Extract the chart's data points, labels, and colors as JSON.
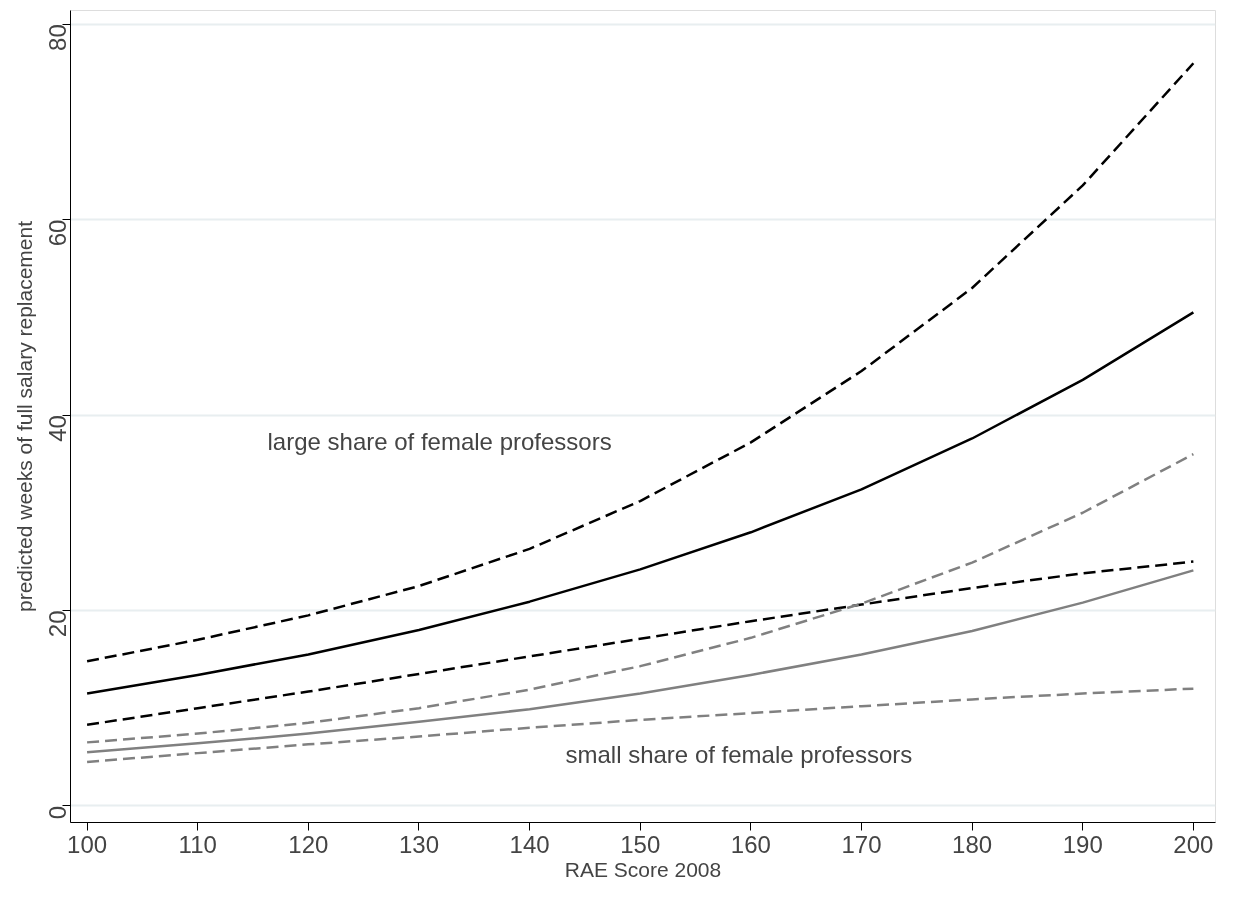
{
  "chart_data": {
    "type": "line",
    "xlabel": "RAE Score 2008",
    "ylabel": "predicted weeks of full salary replacement",
    "x": [
      100,
      110,
      120,
      130,
      140,
      150,
      160,
      170,
      180,
      190,
      200
    ],
    "xlim": [
      98.5,
      202
    ],
    "ylim": [
      -1.7,
      81.4
    ],
    "xticks": [
      100,
      110,
      120,
      130,
      140,
      150,
      160,
      170,
      180,
      190,
      200
    ],
    "yticks": [
      0,
      20,
      40,
      60,
      80
    ],
    "grid": "y",
    "marker": "none",
    "series": [
      {
        "color": "#000000",
        "line_style": "dashed",
        "values": [
          14.8,
          17.0,
          19.5,
          22.5,
          26.3,
          31.2,
          37.2,
          44.5,
          53.0,
          63.5,
          76.0
        ]
      },
      {
        "color": "#000000",
        "line_style": "solid",
        "values": [
          11.5,
          13.4,
          15.5,
          18.0,
          20.9,
          24.2,
          28.0,
          32.4,
          37.6,
          43.6,
          50.5
        ]
      },
      {
        "color": "#000000",
        "line_style": "dashed",
        "values": [
          8.3,
          10.0,
          11.7,
          13.5,
          15.3,
          17.1,
          18.9,
          20.6,
          22.3,
          23.8,
          25.0
        ]
      },
      {
        "color": "#808080",
        "line_style": "dashed",
        "values": [
          6.5,
          7.4,
          8.5,
          10.0,
          11.9,
          14.3,
          17.2,
          20.7,
          24.9,
          30.0,
          36.0
        ]
      },
      {
        "color": "#808080",
        "line_style": "solid",
        "values": [
          5.5,
          6.4,
          7.4,
          8.6,
          9.9,
          11.5,
          13.4,
          15.5,
          17.9,
          20.8,
          24.1
        ]
      },
      {
        "color": "#808080",
        "line_style": "dashed",
        "values": [
          4.5,
          5.4,
          6.3,
          7.1,
          8.0,
          8.8,
          9.5,
          10.2,
          10.9,
          11.5,
          12.0
        ]
      }
    ],
    "annotations": [
      "large share of female professors",
      "small share of female professors"
    ]
  }
}
